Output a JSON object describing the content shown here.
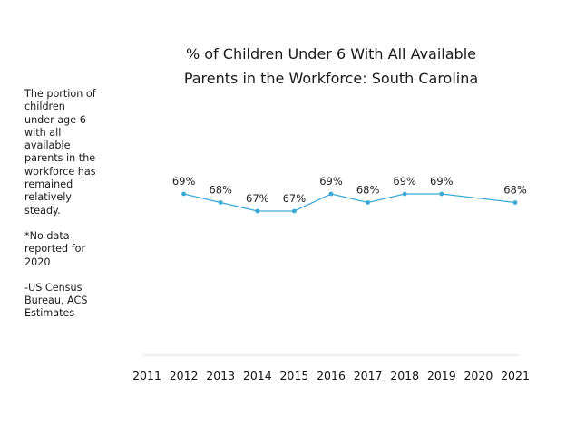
{
  "title_lines": [
    "% of Children Under 6 With All Available",
    "Parents in the Workforce: South Carolina"
  ],
  "notes": [
    "The portion of\nchildren\nunder age 6\nwith all\navailable\nparents in the\nworkforce has\nremained\nrelatively\nsteady.",
    "*No data\nreported for\n2020",
    "-US Census\nBureau, ACS\nEstimates"
  ],
  "colors": {
    "line": "#3aa9d6",
    "axis": "#dddddd"
  },
  "chart_data": {
    "type": "line",
    "title": "% of Children Under 6 With All Available Parents in the Workforce: South Carolina",
    "categories": [
      "2011",
      "2012",
      "2013",
      "2014",
      "2015",
      "2016",
      "2017",
      "2018",
      "2019",
      "2020",
      "2021"
    ],
    "values": [
      null,
      69,
      68,
      67,
      67,
      69,
      68,
      69,
      69,
      null,
      68
    ],
    "data_labels": [
      "",
      "69%",
      "68%",
      "67%",
      "67%",
      "69%",
      "68%",
      "69%",
      "69%",
      "",
      "68%"
    ],
    "connect_gaps": true,
    "grid": false,
    "legend": "none",
    "ylim": [
      0,
      100
    ]
  }
}
